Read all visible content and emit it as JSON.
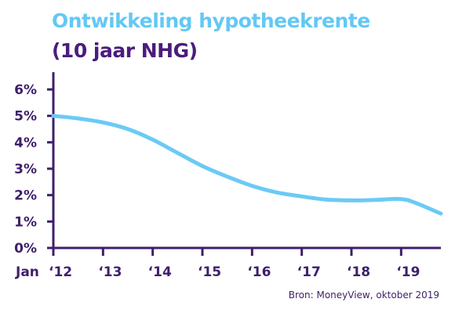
{
  "colors": {
    "title": "#63c8f4",
    "subtitle": "#4b1c7c",
    "axis": "#3e1f6b",
    "line": "#6bcaf5",
    "text": "#3e1f6b"
  },
  "chart_data": {
    "type": "line",
    "title": "Ontwikkeling hypotheekrente",
    "subtitle": "(10 jaar NHG)",
    "xlabel": "",
    "ylabel": "",
    "x_prefix": "Jan",
    "ylim": [
      0,
      6
    ],
    "yticks": [
      0,
      1,
      2,
      3,
      4,
      5,
      6
    ],
    "ytick_labels": [
      "0%",
      "1%",
      "2%",
      "3%",
      "4%",
      "5%",
      "6%"
    ],
    "xlim": [
      2012,
      2019.8
    ],
    "xticks": [
      2012,
      2013,
      2014,
      2015,
      2016,
      2017,
      2018,
      2019
    ],
    "xtick_labels": [
      "‘12",
      "‘13",
      "‘14",
      "‘15",
      "‘16",
      "‘17",
      "‘18",
      "‘19"
    ],
    "grid": false,
    "series": [
      {
        "x": [
          2012,
          2012.5,
          2013,
          2013.5,
          2014,
          2014.5,
          2015,
          2015.5,
          2016,
          2016.5,
          2017,
          2017.5,
          2018,
          2018.5,
          2019,
          2019.3,
          2019.8
        ],
        "values": [
          5.0,
          4.9,
          4.75,
          4.5,
          4.1,
          3.6,
          3.1,
          2.7,
          2.35,
          2.1,
          1.95,
          1.83,
          1.8,
          1.82,
          1.85,
          1.7,
          1.3
        ]
      }
    ]
  },
  "source": "Bron: MoneyView, oktober 2019"
}
